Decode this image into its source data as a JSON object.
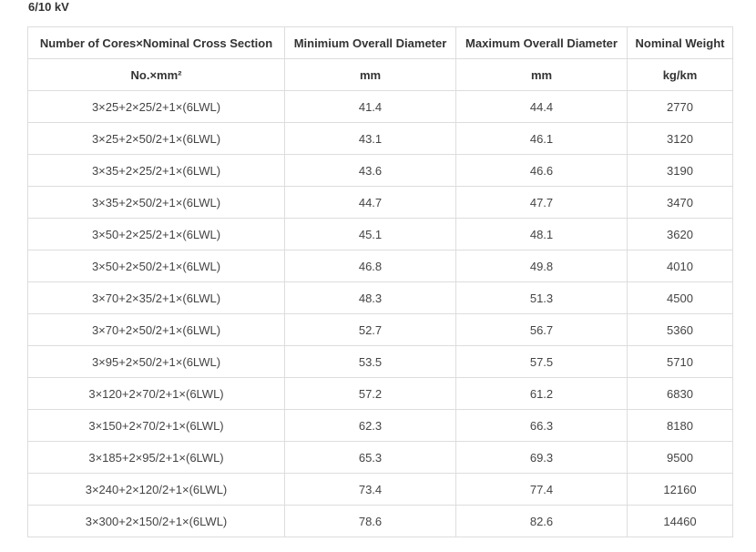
{
  "page_title": "6/10 kV",
  "table": {
    "headers": [
      "Number of Cores×Nominal Cross Section",
      "Minimium Overall Diameter",
      "Maximum Overall Diameter",
      "Nominal Weight"
    ],
    "units": [
      "No.×mm²",
      "mm",
      "mm",
      "kg/km"
    ],
    "rows": [
      [
        "3×25+2×25/2+1×(6LWL)",
        "41.4",
        "44.4",
        "2770"
      ],
      [
        "3×25+2×50/2+1×(6LWL)",
        "43.1",
        "46.1",
        "3120"
      ],
      [
        "3×35+2×25/2+1×(6LWL)",
        "43.6",
        "46.6",
        "3190"
      ],
      [
        "3×35+2×50/2+1×(6LWL)",
        "44.7",
        "47.7",
        "3470"
      ],
      [
        "3×50+2×25/2+1×(6LWL)",
        "45.1",
        "48.1",
        "3620"
      ],
      [
        "3×50+2×50/2+1×(6LWL)",
        "46.8",
        "49.8",
        "4010"
      ],
      [
        "3×70+2×35/2+1×(6LWL)",
        "48.3",
        "51.3",
        "4500"
      ],
      [
        "3×70+2×50/2+1×(6LWL)",
        "52.7",
        "56.7",
        "5360"
      ],
      [
        "3×95+2×50/2+1×(6LWL)",
        "53.5",
        "57.5",
        "5710"
      ],
      [
        "3×120+2×70/2+1×(6LWL)",
        "57.2",
        "61.2",
        "6830"
      ],
      [
        "3×150+2×70/2+1×(6LWL)",
        "62.3",
        "66.3",
        "8180"
      ],
      [
        "3×185+2×95/2+1×(6LWL)",
        "65.3",
        "69.3",
        "9500"
      ],
      [
        "3×240+2×120/2+1×(6LWL)",
        "73.4",
        "77.4",
        "12160"
      ],
      [
        "3×300+2×150/2+1×(6LWL)",
        "78.6",
        "82.6",
        "14460"
      ]
    ]
  }
}
